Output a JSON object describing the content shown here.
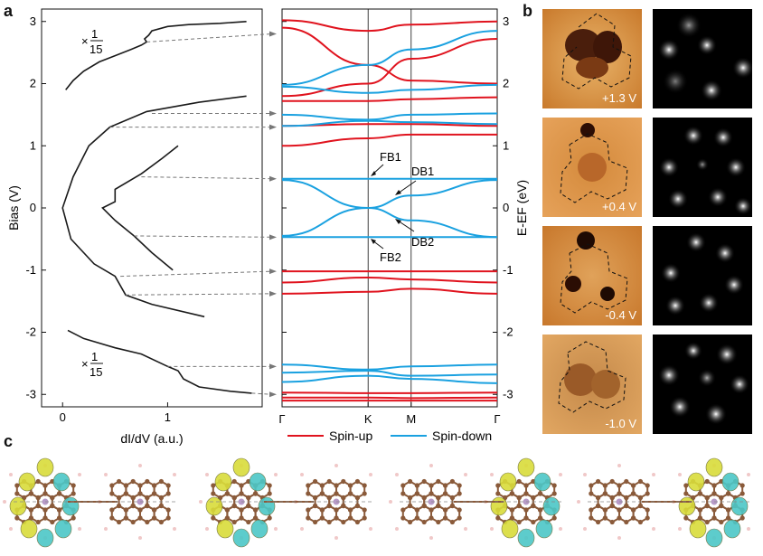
{
  "panels": {
    "a": "a",
    "b": "b",
    "c": "c"
  },
  "sts": {
    "ylabel": "Bias (V)",
    "xlabel": "dI/dV (a.u.)",
    "yticks": [
      "3",
      "2",
      "1",
      "0",
      "-1",
      "-2",
      "-3"
    ],
    "xticks": [
      "0",
      "1"
    ],
    "scale_prefix": "×",
    "scale_num": "1",
    "scale_den": "15"
  },
  "bands": {
    "ylabel": "E-EF (eV)",
    "yticks": [
      "3",
      "2",
      "1",
      "0",
      "-1",
      "-2",
      "-3"
    ],
    "kpoints": [
      "Γ",
      "K",
      "M",
      "Γ"
    ],
    "labels": {
      "fb1": "FB1",
      "db1": "DB1",
      "db2": "DB2",
      "fb2": "FB2"
    },
    "legend": {
      "up": "Spin-up",
      "down": "Spin-down"
    },
    "colors": {
      "up": "#e0131e",
      "down": "#1aa1e0"
    }
  },
  "stm": {
    "biases": [
      "+1.3 V",
      "+0.4 V",
      "-0.4 V",
      "-1.0 V"
    ]
  },
  "chart_data": [
    {
      "type": "line",
      "title": "",
      "xlabel": "dI/dV (a.u.)",
      "ylabel": "Bias (V)",
      "xlim": [
        -0.2,
        1.9
      ],
      "ylim": [
        -3.2,
        3.2
      ],
      "series": [
        {
          "values": [
            [
              0.03,
              1.9
            ],
            [
              0.1,
              2.05
            ],
            [
              0.2,
              2.2
            ],
            [
              0.35,
              2.35
            ],
            [
              0.5,
              2.45
            ],
            [
              0.65,
              2.55
            ],
            [
              0.75,
              2.62
            ],
            [
              0.8,
              2.67
            ],
            [
              0.78,
              2.72
            ],
            [
              0.82,
              2.78
            ],
            [
              0.85,
              2.85
            ],
            [
              1.0,
              2.92
            ],
            [
              1.2,
              2.95
            ],
            [
              1.5,
              2.97
            ],
            [
              1.75,
              3.0
            ]
          ]
        },
        {
          "values": [
            [
              1.75,
              1.8
            ],
            [
              1.3,
              1.7
            ],
            [
              0.8,
              1.55
            ],
            [
              0.45,
              1.3
            ],
            [
              0.25,
              1.0
            ],
            [
              0.1,
              0.5
            ],
            [
              0.0,
              0.0
            ],
            [
              0.08,
              -0.5
            ],
            [
              0.3,
              -0.9
            ],
            [
              0.5,
              -1.1
            ],
            [
              0.6,
              -1.4
            ],
            [
              0.85,
              -1.55
            ],
            [
              1.35,
              -1.75
            ]
          ]
        },
        {
          "values": [
            [
              1.1,
              1.0
            ],
            [
              0.95,
              0.8
            ],
            [
              0.75,
              0.55
            ],
            [
              0.5,
              0.3
            ],
            [
              0.5,
              0.1
            ],
            [
              0.38,
              0.0
            ],
            [
              0.5,
              -0.2
            ],
            [
              0.68,
              -0.45
            ],
            [
              0.85,
              -0.72
            ],
            [
              1.05,
              -1.0
            ]
          ]
        },
        {
          "values": [
            [
              0.05,
              -1.97
            ],
            [
              0.2,
              -2.1
            ],
            [
              0.5,
              -2.25
            ],
            [
              0.75,
              -2.35
            ],
            [
              1.0,
              -2.55
            ],
            [
              1.1,
              -2.62
            ],
            [
              1.15,
              -2.75
            ],
            [
              1.3,
              -2.88
            ],
            [
              1.6,
              -2.95
            ],
            [
              1.8,
              -2.98
            ]
          ]
        }
      ]
    },
    {
      "type": "line",
      "title": "",
      "xlabel": "",
      "ylabel": "E-EF (eV)",
      "categories": [
        "Γ",
        "K",
        "M",
        "Γ"
      ],
      "ylim": [
        -3.2,
        3.2
      ],
      "series": [
        {
          "name": "Spin-up",
          "values": [
            [
              0,
              3.02
            ],
            [
              0.4,
              2.85
            ],
            [
              0.6,
              2.95
            ],
            [
              1,
              3.0
            ]
          ]
        },
        {
          "name": "Spin-up",
          "values": [
            [
              0,
              2.9
            ],
            [
              0.4,
              2.3
            ],
            [
              0.6,
              2.05
            ],
            [
              1,
              2.0
            ]
          ]
        },
        {
          "name": "Spin-up",
          "values": [
            [
              0,
              1.8
            ],
            [
              0.4,
              2.0
            ],
            [
              0.6,
              2.4
            ],
            [
              1,
              2.72
            ]
          ]
        },
        {
          "name": "Spin-up",
          "values": [
            [
              0,
              1.72
            ],
            [
              0.4,
              1.72
            ],
            [
              0.6,
              1.75
            ],
            [
              1,
              1.78
            ]
          ]
        },
        {
          "name": "Spin-up",
          "values": [
            [
              0,
              1.32
            ],
            [
              0.4,
              1.35
            ],
            [
              0.6,
              1.35
            ],
            [
              1,
              1.32
            ]
          ]
        },
        {
          "name": "Spin-up",
          "values": [
            [
              0,
              1.0
            ],
            [
              0.4,
              1.12
            ],
            [
              0.6,
              1.18
            ],
            [
              1,
              1.18
            ]
          ]
        },
        {
          "name": "Spin-down",
          "values": [
            [
              0,
              1.98
            ],
            [
              0.4,
              2.3
            ],
            [
              0.6,
              2.55
            ],
            [
              1,
              2.85
            ]
          ]
        },
        {
          "name": "Spin-down",
          "values": [
            [
              0,
              1.95
            ],
            [
              0.4,
              1.85
            ],
            [
              0.6,
              1.9
            ],
            [
              1,
              1.98
            ]
          ]
        },
        {
          "name": "Spin-down",
          "values": [
            [
              0,
              1.5
            ],
            [
              0.4,
              1.42
            ],
            [
              0.6,
              1.5
            ],
            [
              1,
              1.52
            ]
          ]
        },
        {
          "name": "Spin-down",
          "values": [
            [
              0,
              1.32
            ],
            [
              0.4,
              1.4
            ],
            [
              0.6,
              1.38
            ],
            [
              1,
              1.35
            ]
          ]
        },
        {
          "name": "Spin-down",
          "values": [
            [
              0,
              0.47
            ],
            [
              0.4,
              0.47
            ],
            [
              0.6,
              0.47
            ],
            [
              1,
              0.47
            ]
          ]
        },
        {
          "name": "Spin-down",
          "values": [
            [
              0,
              0.45
            ],
            [
              0.4,
              0.0
            ],
            [
              0.6,
              -0.2
            ],
            [
              1,
              -0.47
            ]
          ]
        },
        {
          "name": "Spin-down",
          "values": [
            [
              0,
              -0.45
            ],
            [
              0.4,
              0.0
            ],
            [
              0.6,
              0.2
            ],
            [
              1,
              0.45
            ]
          ]
        },
        {
          "name": "Spin-down",
          "values": [
            [
              0,
              -0.47
            ],
            [
              0.4,
              -0.47
            ],
            [
              0.6,
              -0.47
            ],
            [
              1,
              -0.47
            ]
          ]
        },
        {
          "name": "Spin-up",
          "values": [
            [
              0,
              -1.02
            ],
            [
              0.4,
              -1.02
            ],
            [
              0.6,
              -1.02
            ],
            [
              1,
              -1.02
            ]
          ]
        },
        {
          "name": "Spin-up",
          "values": [
            [
              0,
              -1.2
            ],
            [
              0.4,
              -1.12
            ],
            [
              0.6,
              -1.15
            ],
            [
              1,
              -1.2
            ]
          ]
        },
        {
          "name": "Spin-up",
          "values": [
            [
              0,
              -1.38
            ],
            [
              0.4,
              -1.35
            ],
            [
              0.6,
              -1.3
            ],
            [
              1,
              -1.38
            ]
          ]
        },
        {
          "name": "Spin-down",
          "values": [
            [
              0,
              -2.52
            ],
            [
              0.4,
              -2.6
            ],
            [
              0.6,
              -2.55
            ],
            [
              1,
              -2.52
            ]
          ]
        },
        {
          "name": "Spin-down",
          "values": [
            [
              0,
              -2.65
            ],
            [
              0.4,
              -2.62
            ],
            [
              0.6,
              -2.7
            ],
            [
              1,
              -2.68
            ]
          ]
        },
        {
          "name": "Spin-down",
          "values": [
            [
              0,
              -2.8
            ],
            [
              0.4,
              -2.7
            ],
            [
              0.6,
              -2.75
            ],
            [
              1,
              -2.82
            ]
          ]
        },
        {
          "name": "Spin-up",
          "values": [
            [
              0,
              -2.97
            ],
            [
              0.4,
              -2.98
            ],
            [
              0.6,
              -2.98
            ],
            [
              1,
              -2.97
            ]
          ]
        },
        {
          "name": "Spin-up",
          "values": [
            [
              0,
              -3.05
            ],
            [
              0.4,
              -3.05
            ],
            [
              0.6,
              -3.06
            ],
            [
              1,
              -3.05
            ]
          ]
        },
        {
          "name": "Spin-up",
          "values": [
            [
              0,
              -3.1
            ],
            [
              0.4,
              -3.1
            ],
            [
              0.6,
              -3.1
            ],
            [
              1,
              -3.1
            ]
          ]
        }
      ]
    }
  ]
}
